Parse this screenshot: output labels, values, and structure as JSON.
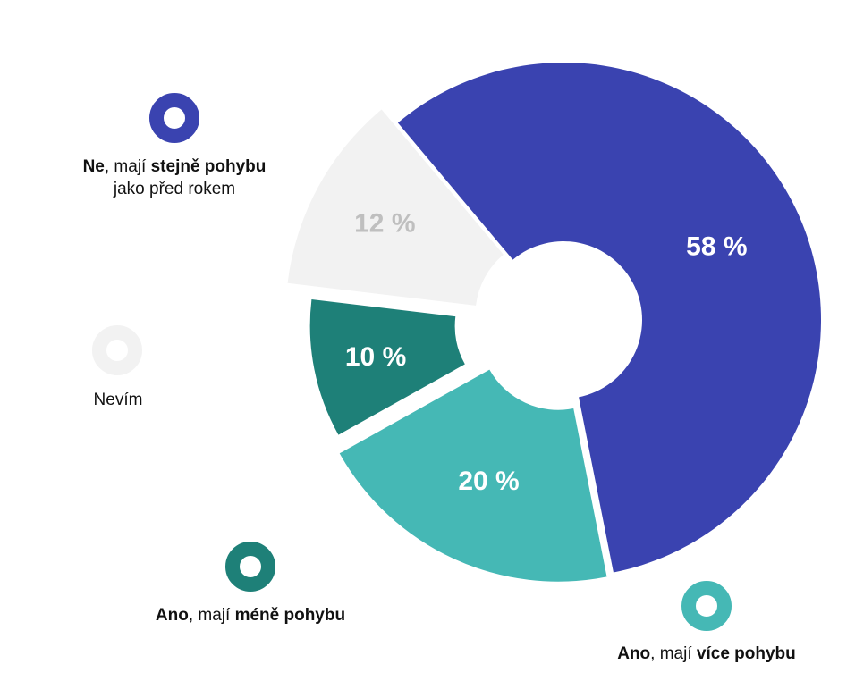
{
  "chart_data": {
    "type": "pie",
    "variant": "exploded-donut",
    "slices": [
      {
        "key": "same",
        "value": 58,
        "label": "58 %",
        "color": "#3A43B0",
        "label_color": "#ffffff",
        "legend": [
          "Ne",
          ", mají ",
          "stejně pohybu",
          "jako před rokem"
        ]
      },
      {
        "key": "more",
        "value": 20,
        "label": "20 %",
        "color": "#45B8B5",
        "label_color": "#ffffff",
        "legend": [
          "Ano",
          ", mají ",
          "více pohybu"
        ]
      },
      {
        "key": "less",
        "value": 10,
        "label": "10 %",
        "color": "#1E8078",
        "label_color": "#ffffff",
        "legend": [
          "Ano",
          ", mají ",
          "méně pohybu"
        ]
      },
      {
        "key": "dontknow",
        "value": 12,
        "label": "12 %",
        "color": "#F2F2F2",
        "label_color": "#BFBFBF",
        "legend": [
          "Nevím"
        ]
      }
    ]
  }
}
